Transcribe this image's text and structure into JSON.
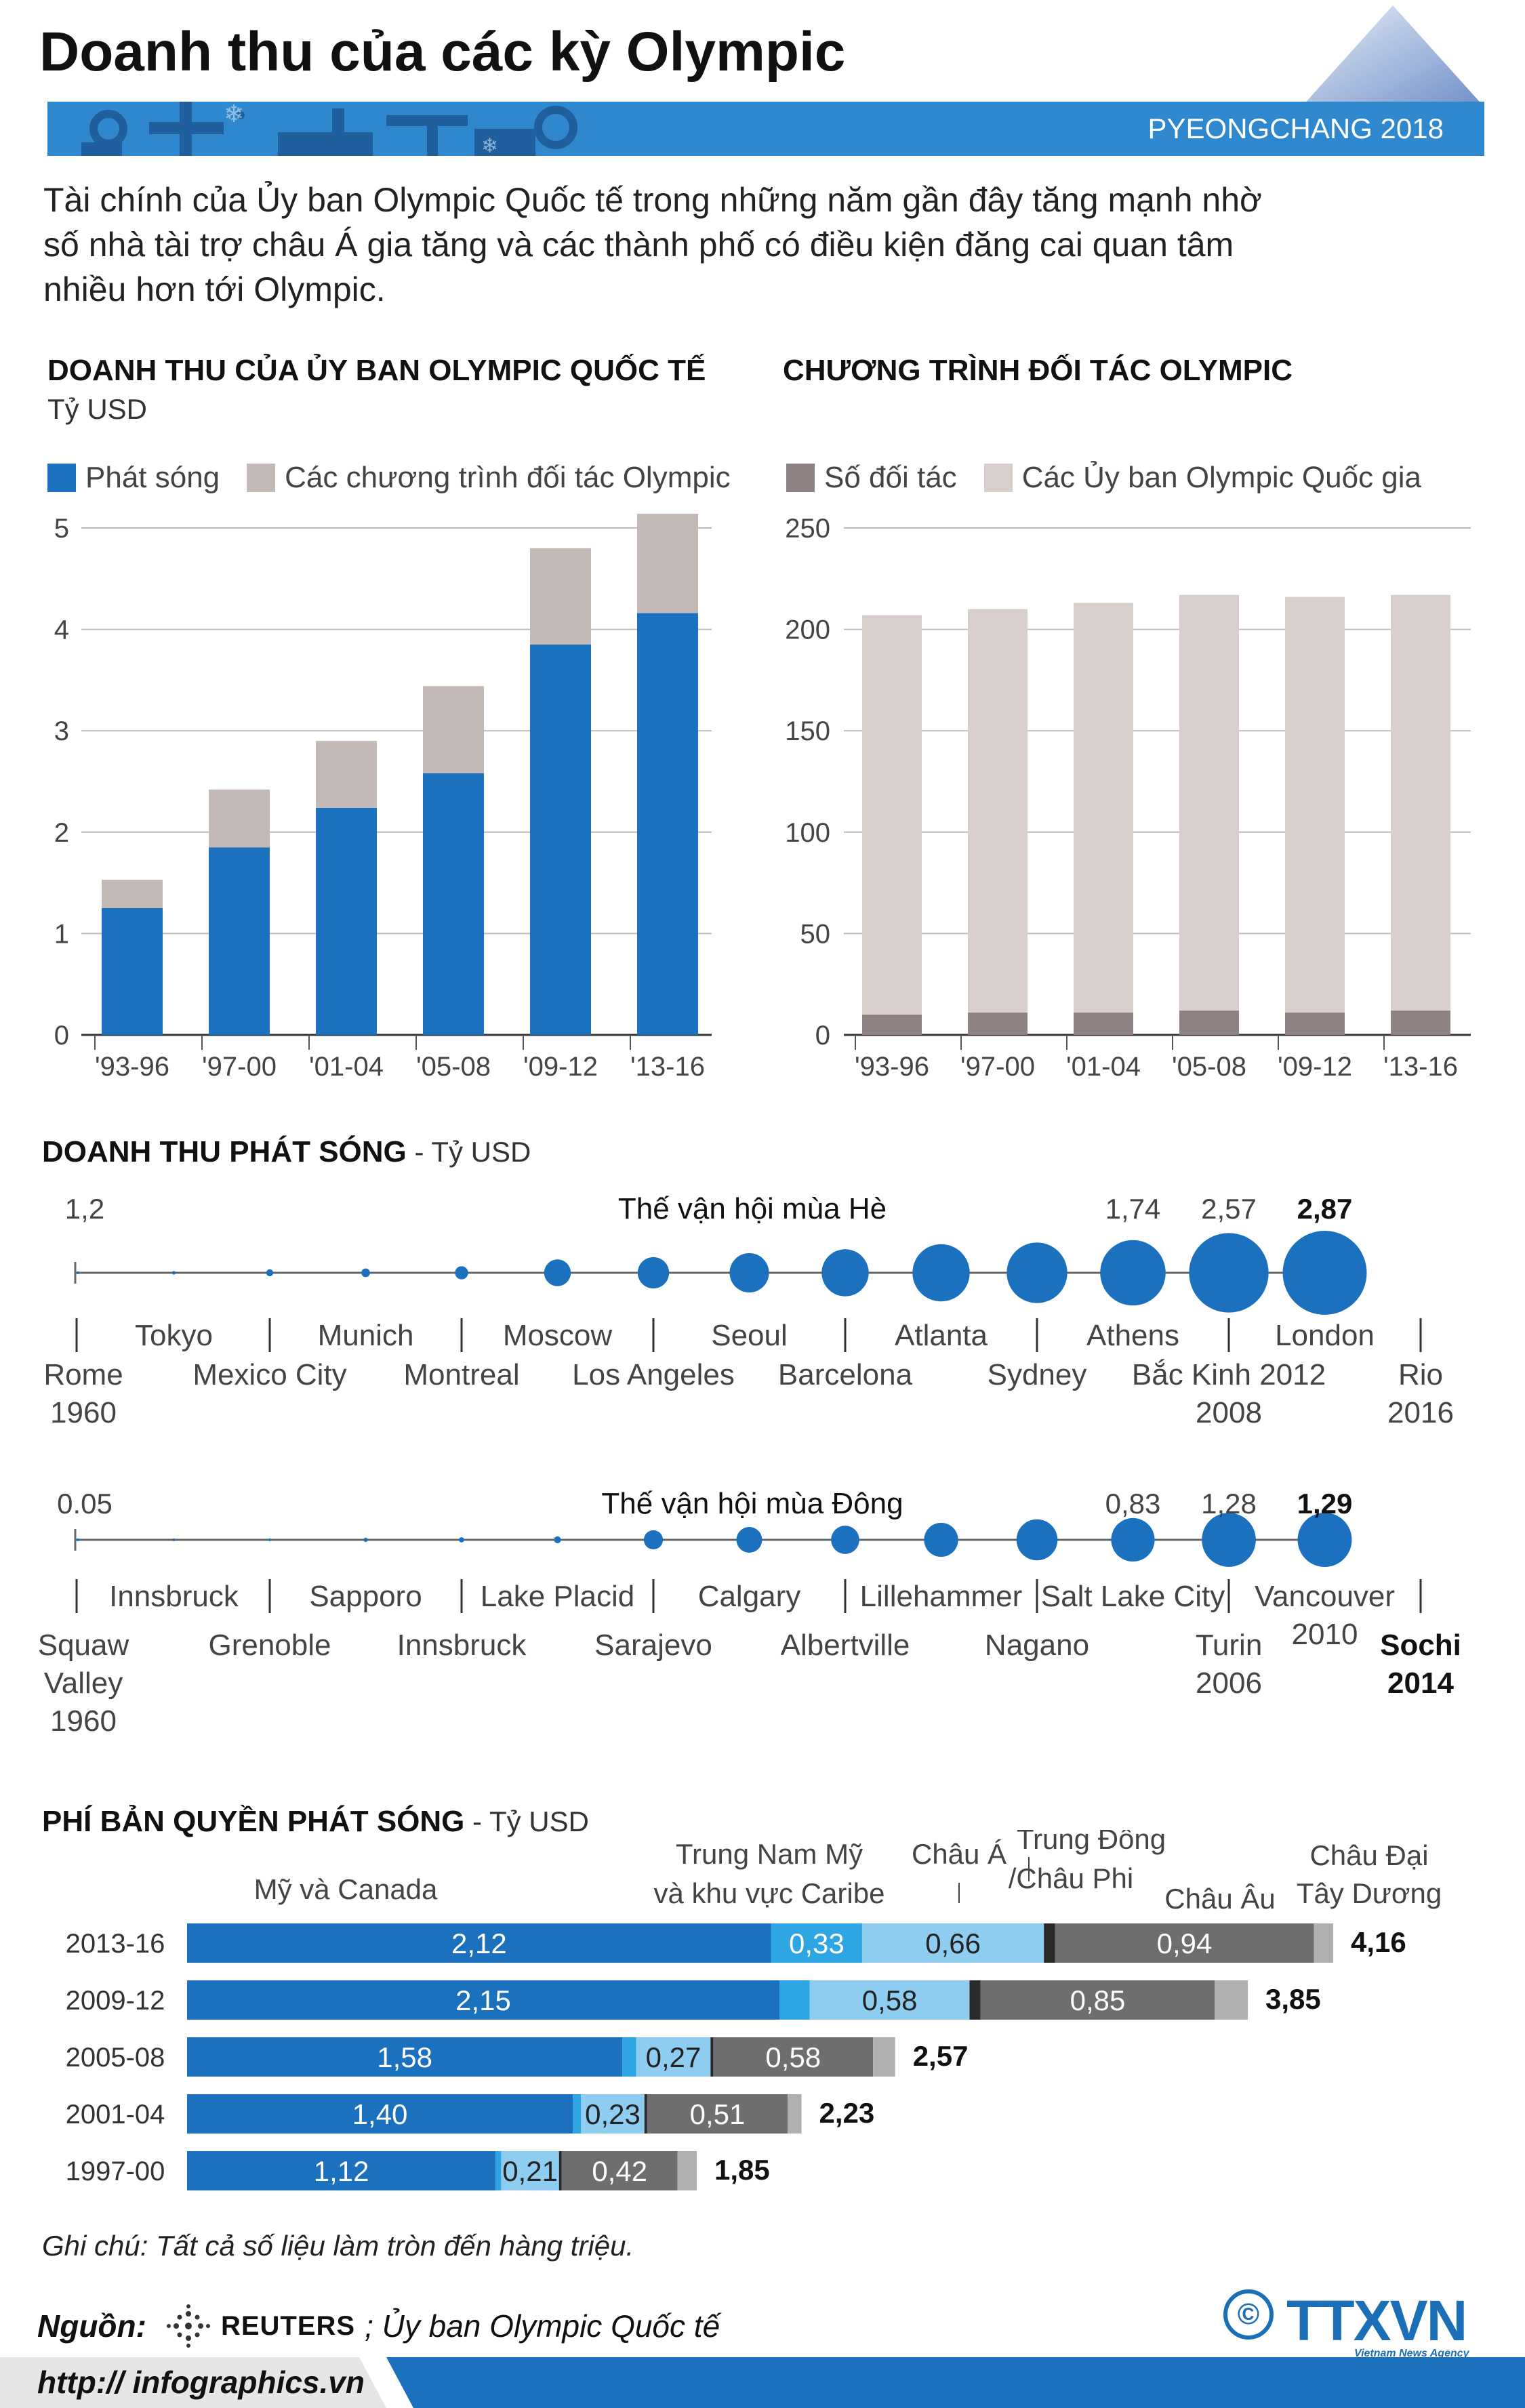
{
  "title": "Doanh thu của các kỳ Olympic",
  "event_label": "PYEONGCHANG 2018",
  "intro": "Tài chính của Ủy ban Olympic Quốc tế trong những năm gần đây tăng mạnh nhờ số nhà tài trợ châu Á gia tăng và các thành phố có điều kiện đăng cai quan tâm nhiều hơn tới Olympic.",
  "colors": {
    "broadcast": "#1b71bd",
    "partner": "#c3b9b6",
    "partner_count": "#8e8181",
    "nocs": "#d8cfcc",
    "na": "#1b71bd",
    "latam": "#2ea6e3",
    "asia": "#8ecdf0",
    "mideast": "#2a2a2a",
    "europe": "#6f6d70",
    "oceania": "#b0aeb0"
  },
  "revenue": {
    "title": "DOANH THU CỦA ỦY BAN OLYMPIC QUỐC TẾ",
    "unit": "Tỷ USD",
    "legend": [
      "Phát sóng",
      "Các chương trình đối tác Olympic"
    ]
  },
  "partners": {
    "title": "CHƯƠNG TRÌNH ĐỐI TÁC OLYMPIC",
    "legend": [
      "Số đối tác",
      "Các Ủy ban Olympic Quốc gia"
    ]
  },
  "broadcast_revenue": {
    "title": "DOANH THU PHÁT SÓNG",
    "unit": " - Tỷ USD"
  },
  "rights_fees": {
    "title": "PHÍ BẢN QUYỀN PHÁT SÓNG",
    "unit": " - Tỷ USD"
  },
  "chart_data": [
    {
      "type": "bar",
      "stacked": true,
      "title": "DOANH THU CỦA ỦY BAN OLYMPIC QUỐC TẾ",
      "ylabel": "Tỷ USD",
      "categories": [
        "'93-96",
        "'97-00",
        "'01-04",
        "'05-08",
        "'09-12",
        "'13-16"
      ],
      "series": [
        {
          "name": "Phát sóng",
          "values": [
            1.25,
            1.85,
            2.24,
            2.58,
            3.85,
            4.16
          ]
        },
        {
          "name": "Các chương trình đối tác Olympic",
          "values": [
            0.28,
            0.57,
            0.66,
            0.86,
            0.95,
            0.98
          ]
        }
      ],
      "ylim": [
        0,
        5
      ],
      "yticks": [
        "0",
        "1",
        "2",
        "3",
        "4",
        "5"
      ]
    },
    {
      "type": "bar",
      "stacked": true,
      "title": "CHƯƠNG TRÌNH ĐỐI TÁC OLYMPIC",
      "categories": [
        "'93-96",
        "'97-00",
        "'01-04",
        "'05-08",
        "'09-12",
        "'13-16"
      ],
      "series": [
        {
          "name": "Số đối tác",
          "values": [
            10,
            11,
            11,
            12,
            11,
            12
          ]
        },
        {
          "name": "Các Ủy ban Olympic Quốc gia",
          "values": [
            197,
            199,
            202,
            205,
            205,
            205
          ]
        }
      ],
      "ylim": [
        0,
        250
      ],
      "yticks": [
        "0",
        "50",
        "100",
        "150",
        "200",
        "250"
      ]
    },
    {
      "type": "scatter",
      "title": "Thế vận hội mùa Hè",
      "start_label": "1,2",
      "values": [
        0.001,
        0.005,
        0.02,
        0.03,
        0.07,
        0.29,
        0.4,
        0.63,
        0.9,
        1.33,
        1.49,
        1.74,
        2.57,
        2.87
      ],
      "value_labels": [
        "",
        "",
        "",
        "",
        "",
        "",
        "",
        "",
        "",
        "",
        "",
        "1,74",
        "2,57",
        "2,87"
      ],
      "upper_labels": [
        "Tokyo",
        "Munich",
        "Moscow",
        "Seoul",
        "Atlanta",
        "Athens",
        "London"
      ],
      "lower_labels": [
        "Rome",
        "Mexico City",
        "Montreal",
        "Los Angeles",
        "Barcelona",
        "Sydney",
        "Bắc Kinh 2012",
        "Rio"
      ],
      "year_labels": [
        "1960",
        "",
        "",
        "",
        "",
        "",
        "2008",
        "2016"
      ]
    },
    {
      "type": "scatter",
      "title": "Thế vận hội mùa Đông",
      "start_label": "0.05",
      "values": [
        0.0005,
        0.001,
        0.002,
        0.008,
        0.012,
        0.021,
        0.16,
        0.29,
        0.35,
        0.51,
        0.74,
        0.83,
        1.28,
        1.29
      ],
      "value_labels": [
        "",
        "",
        "",
        "",
        "",
        "",
        "",
        "",
        "",
        "",
        "",
        "0,83",
        "1,28",
        "1,29"
      ],
      "upper_labels": [
        "Innsbruck",
        "Sapporo",
        "Lake Placid",
        "Calgary",
        "Lillehammer",
        "Salt Lake City",
        "Vancouver 2010"
      ],
      "lower_labels": [
        "Squaw Valley 1960",
        "Grenoble",
        "Innsbruck",
        "Sarajevo",
        "Albertville",
        "Nagano",
        "Turin 2006",
        "Sochi 2014"
      ]
    },
    {
      "type": "bar",
      "orientation": "horizontal",
      "stacked": true,
      "title": "PHÍ BẢN QUYỀN PHÁT SÓNG",
      "categories": [
        "2013-16",
        "2009-12",
        "2005-08",
        "2001-04",
        "1997-00"
      ],
      "series": [
        {
          "name": "Mỹ và Canada",
          "values": [
            2.12,
            2.15,
            1.58,
            1.4,
            1.12
          ],
          "labels": [
            "2,12",
            "2,15",
            "1,58",
            "1,40",
            "1,12"
          ]
        },
        {
          "name": "Trung Nam Mỹ và khu vực Caribe",
          "values": [
            0.33,
            0.11,
            0.05,
            0.03,
            0.02
          ],
          "labels": [
            "0,33",
            "",
            "",
            "",
            ""
          ]
        },
        {
          "name": "Châu Á",
          "values": [
            0.66,
            0.58,
            0.27,
            0.23,
            0.21
          ],
          "labels": [
            "0,66",
            "0,58",
            "0,27",
            "0,23",
            "0,21"
          ]
        },
        {
          "name": "Trung Đông /Châu Phi",
          "values": [
            0.04,
            0.04,
            0.01,
            0.01,
            0.01
          ],
          "labels": [
            "",
            "",
            "",
            "",
            ""
          ]
        },
        {
          "name": "Châu Âu",
          "values": [
            0.94,
            0.85,
            0.58,
            0.51,
            0.42
          ],
          "labels": [
            "0,94",
            "0,85",
            "0,58",
            "0,51",
            "0,42"
          ]
        },
        {
          "name": "Châu Đại Tây Dương",
          "values": [
            0.07,
            0.12,
            0.08,
            0.05,
            0.07
          ],
          "labels": [
            "",
            "",
            "",
            "",
            ""
          ]
        }
      ],
      "totals": [
        "4,16",
        "3,85",
        "2,57",
        "2,23",
        "1,85"
      ],
      "region_labels": [
        "Mỹ và Canada",
        "Trung Nam Mỹ",
        "và khu vực Caribe",
        "Châu Á",
        "Trung Đông",
        "/Châu Phi",
        "Châu Âu",
        "Châu Đại",
        "Tây Dương"
      ]
    }
  ],
  "footer": {
    "note": "Ghi chú: Tất cả số liệu làm tròn đến hàng triệu.",
    "source_label": "Nguồn:",
    "source_agency": "REUTERS",
    "source_text": "; Ủy ban Olympic Quốc tế",
    "site": "http:// infographics.vn",
    "copyright": "©",
    "agency": "TTXVN",
    "agency_sub": "Vietnam News Agency"
  }
}
